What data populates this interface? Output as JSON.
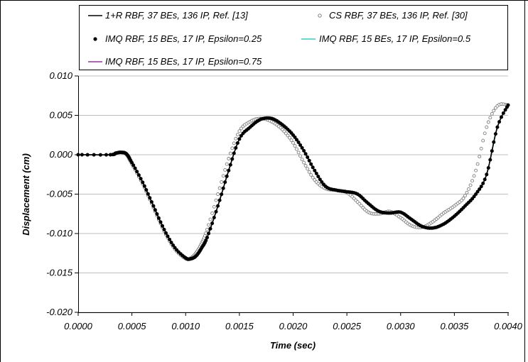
{
  "chart_data": {
    "type": "line",
    "xlabel": "Time (sec)",
    "ylabel": "Displacement (cm)",
    "xlim": [
      0.0,
      0.004
    ],
    "ylim": [
      -0.02,
      0.01
    ],
    "x_tick_labels": [
      "0.0000",
      "0.0005",
      "0.0010",
      "0.0015",
      "0.0020",
      "0.0025",
      "0.0030",
      "0.0035",
      "0.0040"
    ],
    "y_tick_labels": [
      "0.010",
      "0.005",
      "0.000",
      "-0.005",
      "-0.010",
      "-0.015",
      "-0.020"
    ],
    "grid": "horizontal",
    "legend_position": "top",
    "series": [
      {
        "name": "1+R RBF, 37 BEs, 136 IP, Ref. [13]",
        "style": "line",
        "color": "#000000",
        "x": [
          0,
          0.0003,
          0.00035,
          0.0004,
          0.00045,
          0.0005,
          0.0006,
          0.0007,
          0.0008,
          0.0009,
          0.001,
          0.00105,
          0.0011,
          0.00115,
          0.0012,
          0.0013,
          0.0014,
          0.0015,
          0.0016,
          0.0017,
          0.0018,
          0.0019,
          0.002,
          0.0021,
          0.0022,
          0.0023,
          0.0024,
          0.0025,
          0.0026,
          0.0027,
          0.0028,
          0.0029,
          0.003,
          0.0031,
          0.0032,
          0.0033,
          0.0034,
          0.0035,
          0.0036,
          0.0037,
          0.0038,
          0.0039,
          0.004
        ],
        "y": [
          0,
          0,
          0.0002,
          0.0003,
          0.0001,
          -0.001,
          -0.0035,
          -0.0065,
          -0.0095,
          -0.0118,
          -0.0131,
          -0.0132,
          -0.0128,
          -0.0118,
          -0.0105,
          -0.0065,
          -0.002,
          0.002,
          0.0035,
          0.0045,
          0.0046,
          0.0038,
          0.0025,
          0.0005,
          -0.002,
          -0.004,
          -0.0045,
          -0.0047,
          -0.005,
          -0.0062,
          -0.0072,
          -0.0074,
          -0.0073,
          -0.0082,
          -0.0091,
          -0.0093,
          -0.0088,
          -0.0078,
          -0.0065,
          -0.005,
          -0.0025,
          0.0035,
          0.0063
        ]
      },
      {
        "name": "CS RBF, 37 BEs, 136 IP, Ref. [30]",
        "style": "open-marker",
        "color": "#7f7f7f",
        "x": [
          0,
          0.0003,
          0.00035,
          0.0004,
          0.00045,
          0.0005,
          0.0006,
          0.0007,
          0.0008,
          0.0009,
          0.001,
          0.00105,
          0.0011,
          0.00115,
          0.0012,
          0.0013,
          0.0014,
          0.0015,
          0.0016,
          0.0017,
          0.0018,
          0.0019,
          0.002,
          0.0021,
          0.0022,
          0.0023,
          0.0024,
          0.0025,
          0.0026,
          0.0027,
          0.0028,
          0.0029,
          0.003,
          0.0031,
          0.0032,
          0.0033,
          0.0034,
          0.0035,
          0.0036,
          0.0037,
          0.0038,
          0.0039,
          0.004
        ],
        "y": [
          0,
          0,
          0.0002,
          0.0003,
          0,
          -0.0012,
          -0.0037,
          -0.0067,
          -0.0097,
          -0.012,
          -0.0132,
          -0.0131,
          -0.0124,
          -0.0112,
          -0.0095,
          -0.005,
          -0.0005,
          0.003,
          0.0042,
          0.0046,
          0.0042,
          0.0032,
          0.0015,
          -0.001,
          -0.0032,
          -0.0043,
          -0.0045,
          -0.0048,
          -0.006,
          -0.0073,
          -0.0075,
          -0.0072,
          -0.008,
          -0.009,
          -0.0092,
          -0.0085,
          -0.0074,
          -0.0065,
          -0.0052,
          -0.002,
          0.0035,
          0.0062,
          0.0063
        ]
      },
      {
        "name": "IMQ RBF, 15 BEs, 17 IP,  Epsilon=0.25",
        "style": "filled-marker",
        "color": "#000000",
        "x": [
          0,
          0.0003,
          0.00035,
          0.0004,
          0.00045,
          0.0005,
          0.0006,
          0.0007,
          0.0008,
          0.0009,
          0.001,
          0.00105,
          0.0011,
          0.00115,
          0.0012,
          0.0013,
          0.0014,
          0.0015,
          0.0016,
          0.0017,
          0.0018,
          0.0019,
          0.002,
          0.0021,
          0.0022,
          0.0023,
          0.0024,
          0.0025,
          0.0026,
          0.0027,
          0.0028,
          0.0029,
          0.003,
          0.0031,
          0.0032,
          0.0033,
          0.0034,
          0.0035,
          0.0036,
          0.0037,
          0.0038,
          0.0039,
          0.004
        ],
        "y": [
          0,
          0,
          0.0002,
          0.0003,
          0.0001,
          -0.001,
          -0.0035,
          -0.0065,
          -0.0095,
          -0.0118,
          -0.0131,
          -0.0132,
          -0.0128,
          -0.0118,
          -0.0105,
          -0.0065,
          -0.002,
          0.002,
          0.0035,
          0.0045,
          0.0046,
          0.0038,
          0.0025,
          0.0005,
          -0.002,
          -0.004,
          -0.0045,
          -0.0047,
          -0.005,
          -0.0062,
          -0.0072,
          -0.0074,
          -0.0073,
          -0.0082,
          -0.0091,
          -0.0093,
          -0.0088,
          -0.0078,
          -0.0065,
          -0.005,
          -0.0025,
          0.0035,
          0.0063
        ]
      },
      {
        "name": "IMQ RBF, 15 BEs, 17 IP,  Epsilon=0.5",
        "style": "line",
        "color": "#33cccc",
        "x": [
          0,
          0.0003,
          0.00035,
          0.0004,
          0.00045,
          0.0005,
          0.0006,
          0.0007,
          0.0008,
          0.0009,
          0.001,
          0.00105,
          0.0011,
          0.00115,
          0.0012,
          0.0013,
          0.0014,
          0.0015,
          0.0016,
          0.0017,
          0.0018,
          0.0019,
          0.002,
          0.0021,
          0.0022,
          0.0023,
          0.0024,
          0.0025,
          0.0026,
          0.0027,
          0.0028,
          0.0029,
          0.003,
          0.0031,
          0.0032,
          0.0033,
          0.0034,
          0.0035,
          0.0036,
          0.0037,
          0.0038,
          0.0039,
          0.004
        ],
        "y": [
          0,
          0,
          0.0002,
          0.0003,
          0.0001,
          -0.001,
          -0.0035,
          -0.0065,
          -0.0095,
          -0.0118,
          -0.0131,
          -0.0132,
          -0.0128,
          -0.0118,
          -0.0105,
          -0.0065,
          -0.002,
          0.002,
          0.0035,
          0.0045,
          0.0046,
          0.0038,
          0.0025,
          0.0005,
          -0.002,
          -0.004,
          -0.0045,
          -0.0047,
          -0.005,
          -0.0062,
          -0.0072,
          -0.0074,
          -0.0073,
          -0.0082,
          -0.0091,
          -0.0093,
          -0.0088,
          -0.0078,
          -0.0065,
          -0.005,
          -0.0025,
          0.0035,
          0.0063
        ]
      },
      {
        "name": "IMQ RBF, 15 BEs, 17 IP,  Epsilon=0.75",
        "style": "line",
        "color": "#993399",
        "x": [
          0,
          0.0003,
          0.00035,
          0.0004,
          0.00045,
          0.0005,
          0.0006,
          0.0007,
          0.0008,
          0.0009,
          0.001,
          0.00105,
          0.0011,
          0.00115,
          0.0012,
          0.0013,
          0.0014,
          0.0015,
          0.0016,
          0.0017,
          0.0018,
          0.0019,
          0.002,
          0.0021,
          0.0022,
          0.0023,
          0.0024,
          0.0025,
          0.0026,
          0.0027,
          0.0028,
          0.0029,
          0.003,
          0.0031,
          0.0032,
          0.0033,
          0.0034,
          0.0035,
          0.0036,
          0.0037,
          0.0038,
          0.0039,
          0.004
        ],
        "y": [
          0,
          0,
          0.0002,
          0.0003,
          0.0001,
          -0.001,
          -0.0035,
          -0.0065,
          -0.0095,
          -0.0118,
          -0.0131,
          -0.0132,
          -0.0128,
          -0.0118,
          -0.0105,
          -0.0065,
          -0.002,
          0.002,
          0.0035,
          0.0045,
          0.0046,
          0.0038,
          0.0025,
          0.0005,
          -0.002,
          -0.004,
          -0.0045,
          -0.0047,
          -0.005,
          -0.0062,
          -0.0072,
          -0.0074,
          -0.0073,
          -0.0082,
          -0.0091,
          -0.0093,
          -0.0088,
          -0.0078,
          -0.0065,
          -0.005,
          -0.0025,
          0.0035,
          0.0063
        ]
      }
    ]
  }
}
